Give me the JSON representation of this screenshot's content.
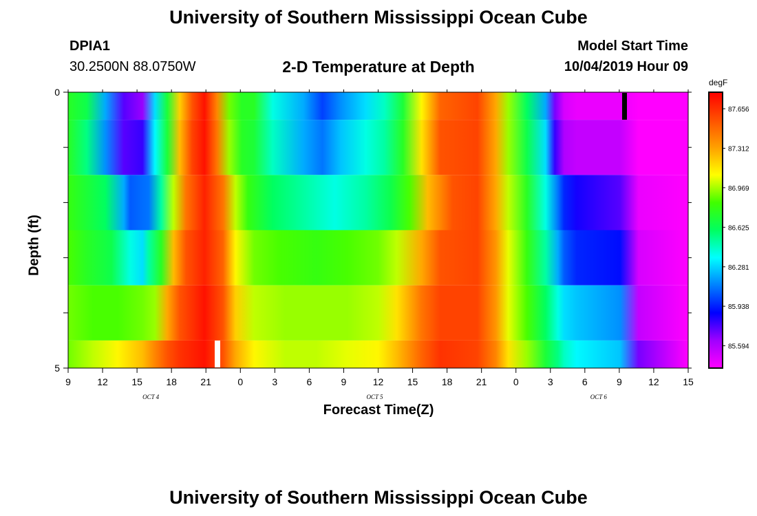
{
  "header": {
    "title": "University of Southern Mississippi Ocean Cube",
    "station": "DPIA1",
    "coords": "30.2500N 88.0750W",
    "subtitle": "2-D Temperature at Depth",
    "model_start_label": "Model Start Time",
    "model_start_value": "10/04/2019 Hour 09"
  },
  "footer": {
    "title": "University of Southern Mississippi Ocean Cube"
  },
  "chart_data": {
    "type": "heatmap",
    "xlabel": "Forecast Time(Z)",
    "ylabel": "Depth (ft)",
    "x_tick_labels": [
      "9",
      "12",
      "15",
      "18",
      "21",
      "0",
      "3",
      "6",
      "9",
      "12",
      "15",
      "18",
      "21",
      "0",
      "3",
      "6",
      "9",
      "12",
      "15"
    ],
    "date_labels": [
      "OCT 4",
      "OCT 5",
      "OCT 6"
    ],
    "y_tick_labels": [
      "0",
      "5"
    ],
    "ylim": [
      0,
      5
    ],
    "colorbar": {
      "unit": "degF",
      "tick_labels": [
        "87.656",
        "87.312",
        "86.969",
        "86.625",
        "86.281",
        "85.938",
        "85.594"
      ],
      "range": [
        85.4,
        87.8
      ],
      "colors": [
        "#ff00ff",
        "#a000ff",
        "#0000ff",
        "#0080ff",
        "#00ffff",
        "#00ff60",
        "#40ff00",
        "#ffff00",
        "#ffa000",
        "#ff5000",
        "#ff0000"
      ]
    },
    "depth_layers": [
      {
        "depth_range": [
          0,
          0.5
        ],
        "stops": [
          [
            0,
            86.75
          ],
          [
            0.03,
            86.65
          ],
          [
            0.06,
            86.2
          ],
          [
            0.09,
            85.75
          ],
          [
            0.12,
            85.65
          ],
          [
            0.14,
            86.3
          ],
          [
            0.16,
            86.7
          ],
          [
            0.18,
            87.2
          ],
          [
            0.2,
            87.55
          ],
          [
            0.22,
            87.75
          ],
          [
            0.24,
            87.4
          ],
          [
            0.26,
            86.9
          ],
          [
            0.28,
            86.75
          ],
          [
            0.3,
            86.75
          ],
          [
            0.33,
            86.4
          ],
          [
            0.38,
            86.2
          ],
          [
            0.41,
            86.0
          ],
          [
            0.44,
            86.15
          ],
          [
            0.48,
            86.3
          ],
          [
            0.51,
            86.45
          ],
          [
            0.54,
            86.7
          ],
          [
            0.57,
            87.1
          ],
          [
            0.6,
            87.5
          ],
          [
            0.66,
            87.6
          ],
          [
            0.69,
            87.3
          ],
          [
            0.71,
            86.95
          ],
          [
            0.74,
            86.6
          ],
          [
            0.77,
            86.2
          ],
          [
            0.785,
            85.7
          ],
          [
            0.8,
            85.5
          ],
          [
            0.82,
            85.45
          ],
          [
            0.85,
            85.45
          ],
          [
            0.89,
            85.45
          ],
          [
            0.92,
            85.4
          ],
          [
            1.0,
            85.35
          ]
        ]
      },
      {
        "depth_range": [
          0.5,
          1.5
        ],
        "stops": [
          [
            0,
            86.75
          ],
          [
            0.03,
            86.55
          ],
          [
            0.06,
            86.15
          ],
          [
            0.09,
            85.75
          ],
          [
            0.12,
            85.8
          ],
          [
            0.14,
            86.35
          ],
          [
            0.16,
            86.7
          ],
          [
            0.18,
            87.25
          ],
          [
            0.2,
            87.6
          ],
          [
            0.22,
            87.75
          ],
          [
            0.24,
            87.45
          ],
          [
            0.26,
            86.95
          ],
          [
            0.28,
            86.75
          ],
          [
            0.3,
            86.7
          ],
          [
            0.33,
            86.45
          ],
          [
            0.38,
            86.2
          ],
          [
            0.41,
            86.1
          ],
          [
            0.44,
            86.25
          ],
          [
            0.48,
            86.4
          ],
          [
            0.51,
            86.5
          ],
          [
            0.54,
            86.75
          ],
          [
            0.57,
            87.15
          ],
          [
            0.6,
            87.55
          ],
          [
            0.66,
            87.6
          ],
          [
            0.69,
            87.3
          ],
          [
            0.71,
            86.95
          ],
          [
            0.74,
            86.65
          ],
          [
            0.77,
            86.3
          ],
          [
            0.785,
            85.8
          ],
          [
            0.8,
            85.6
          ],
          [
            0.82,
            85.55
          ],
          [
            0.89,
            85.55
          ],
          [
            0.92,
            85.4
          ],
          [
            1.0,
            85.35
          ]
        ]
      },
      {
        "depth_range": [
          1.5,
          2.5
        ],
        "stops": [
          [
            0,
            86.8
          ],
          [
            0.03,
            86.7
          ],
          [
            0.06,
            86.6
          ],
          [
            0.09,
            86.2
          ],
          [
            0.1,
            86.05
          ],
          [
            0.13,
            86.1
          ],
          [
            0.15,
            86.5
          ],
          [
            0.17,
            87.0
          ],
          [
            0.19,
            87.45
          ],
          [
            0.22,
            87.7
          ],
          [
            0.25,
            87.45
          ],
          [
            0.27,
            87.0
          ],
          [
            0.29,
            86.8
          ],
          [
            0.33,
            86.6
          ],
          [
            0.38,
            86.5
          ],
          [
            0.43,
            86.4
          ],
          [
            0.48,
            86.5
          ],
          [
            0.52,
            86.65
          ],
          [
            0.55,
            86.85
          ],
          [
            0.58,
            87.25
          ],
          [
            0.62,
            87.55
          ],
          [
            0.66,
            87.6
          ],
          [
            0.69,
            87.3
          ],
          [
            0.71,
            87.0
          ],
          [
            0.74,
            86.75
          ],
          [
            0.77,
            86.4
          ],
          [
            0.79,
            86.1
          ],
          [
            0.8,
            85.95
          ],
          [
            0.82,
            85.85
          ],
          [
            0.89,
            85.75
          ],
          [
            0.92,
            85.45
          ],
          [
            1.0,
            85.35
          ]
        ]
      },
      {
        "depth_range": [
          2.5,
          3.5
        ],
        "stops": [
          [
            0,
            86.85
          ],
          [
            0.03,
            86.75
          ],
          [
            0.07,
            86.65
          ],
          [
            0.1,
            86.4
          ],
          [
            0.12,
            86.3
          ],
          [
            0.13,
            86.5
          ],
          [
            0.15,
            86.75
          ],
          [
            0.17,
            87.25
          ],
          [
            0.19,
            87.55
          ],
          [
            0.22,
            87.7
          ],
          [
            0.25,
            87.5
          ],
          [
            0.27,
            87.1
          ],
          [
            0.3,
            86.9
          ],
          [
            0.34,
            86.85
          ],
          [
            0.4,
            86.8
          ],
          [
            0.45,
            86.85
          ],
          [
            0.5,
            86.9
          ],
          [
            0.53,
            87.0
          ],
          [
            0.57,
            87.3
          ],
          [
            0.6,
            87.55
          ],
          [
            0.66,
            87.6
          ],
          [
            0.69,
            87.35
          ],
          [
            0.71,
            87.05
          ],
          [
            0.74,
            86.8
          ],
          [
            0.77,
            86.5
          ],
          [
            0.79,
            86.2
          ],
          [
            0.8,
            86.05
          ],
          [
            0.82,
            85.95
          ],
          [
            0.89,
            85.9
          ],
          [
            0.92,
            85.5
          ],
          [
            1.0,
            85.35
          ]
        ]
      },
      {
        "depth_range": [
          3.5,
          4.5
        ],
        "stops": [
          [
            0,
            86.9
          ],
          [
            0.04,
            86.85
          ],
          [
            0.08,
            86.85
          ],
          [
            0.12,
            86.9
          ],
          [
            0.14,
            86.95
          ],
          [
            0.16,
            87.3
          ],
          [
            0.18,
            87.55
          ],
          [
            0.22,
            87.75
          ],
          [
            0.25,
            87.55
          ],
          [
            0.27,
            87.2
          ],
          [
            0.3,
            87.0
          ],
          [
            0.35,
            86.95
          ],
          [
            0.4,
            86.95
          ],
          [
            0.45,
            86.95
          ],
          [
            0.5,
            87.0
          ],
          [
            0.53,
            87.15
          ],
          [
            0.57,
            87.45
          ],
          [
            0.6,
            87.6
          ],
          [
            0.66,
            87.6
          ],
          [
            0.69,
            87.35
          ],
          [
            0.71,
            87.05
          ],
          [
            0.74,
            86.85
          ],
          [
            0.77,
            86.6
          ],
          [
            0.79,
            86.4
          ],
          [
            0.8,
            86.3
          ],
          [
            0.82,
            86.25
          ],
          [
            0.89,
            86.15
          ],
          [
            0.92,
            85.55
          ],
          [
            1.0,
            85.35
          ]
        ]
      },
      {
        "depth_range": [
          4.5,
          5
        ],
        "stops": [
          [
            0,
            86.9
          ],
          [
            0.04,
            87.0
          ],
          [
            0.08,
            87.1
          ],
          [
            0.12,
            87.25
          ],
          [
            0.14,
            87.4
          ],
          [
            0.16,
            87.55
          ],
          [
            0.18,
            87.65
          ],
          [
            0.22,
            87.75
          ],
          [
            0.25,
            87.55
          ],
          [
            0.27,
            87.3
          ],
          [
            0.3,
            87.1
          ],
          [
            0.35,
            87.0
          ],
          [
            0.4,
            87.0
          ],
          [
            0.45,
            87.05
          ],
          [
            0.5,
            87.1
          ],
          [
            0.53,
            87.25
          ],
          [
            0.57,
            87.5
          ],
          [
            0.6,
            87.65
          ],
          [
            0.66,
            87.6
          ],
          [
            0.69,
            87.4
          ],
          [
            0.71,
            87.15
          ],
          [
            0.74,
            86.95
          ],
          [
            0.77,
            86.7
          ],
          [
            0.79,
            86.55
          ],
          [
            0.8,
            86.45
          ],
          [
            0.82,
            86.35
          ],
          [
            0.89,
            86.25
          ],
          [
            0.92,
            85.7
          ],
          [
            1.0,
            85.4
          ]
        ]
      }
    ]
  }
}
